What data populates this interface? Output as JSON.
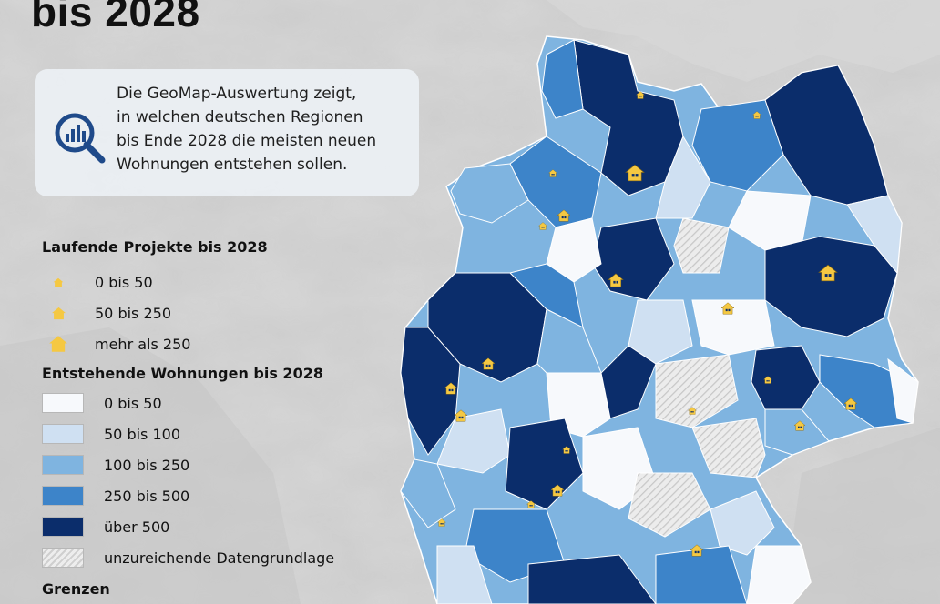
{
  "title": "bis 2028",
  "info_lines": [
    "Die GeoMap-Auswertung zeigt,",
    "in welchen deutschen Regionen",
    "bis Ende 2028 die meisten neuen",
    "Wohnungen entstehen sollen."
  ],
  "legend": {
    "projects_title": "Laufende Projekte bis 2028",
    "projects": [
      {
        "label": "0 bis 50",
        "symbol": "small-house-icon"
      },
      {
        "label": "50 bis 250",
        "symbol": "medium-house-icon"
      },
      {
        "label": "mehr als 250",
        "symbol": "large-house-icon"
      }
    ],
    "housing_title": "Entstehende Wohnungen bis 2028",
    "housing": [
      {
        "label": "0 bis 50",
        "color": "#f7f9fc"
      },
      {
        "label": "50 bis 100",
        "color": "#cfe0f2"
      },
      {
        "label": "100 bis 250",
        "color": "#7fb4e0"
      },
      {
        "label": "250 bis 500",
        "color": "#3d84c9"
      },
      {
        "label": "über 500",
        "color": "#0b2d6b"
      },
      {
        "label": "unzureichende Datengrundlage",
        "color": "hatched"
      }
    ],
    "borders_title": "Grenzen"
  },
  "colors": {
    "background_relief": "#cfcfcf",
    "house_marker": "#f5c842"
  }
}
